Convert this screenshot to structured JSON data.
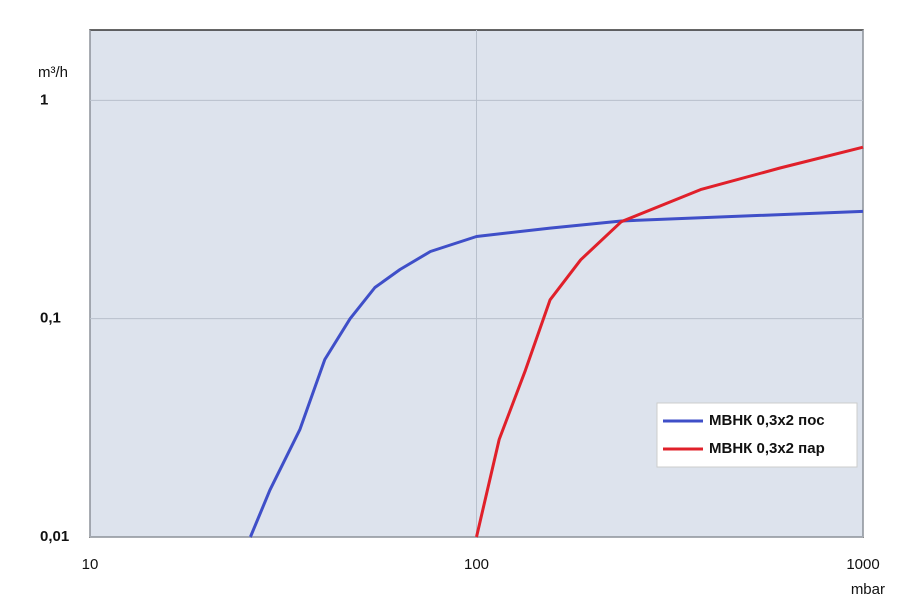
{
  "chart_data": {
    "type": "line",
    "y_label": "m³/h",
    "x_label": "mbar",
    "x_log": true,
    "y_log": true,
    "grid": true,
    "legend": "lower right",
    "xlim": [
      10,
      1000
    ],
    "xticks": [
      10,
      100,
      1000
    ],
    "ylim": [
      0.01,
      2.1
    ],
    "yticks": [
      {
        "value": 0.01,
        "label": "0,01"
      },
      {
        "value": 0.1,
        "label": "0,1"
      },
      {
        "value": 1,
        "label": "1"
      }
    ],
    "series": [
      {
        "name": "МВНК 0,3х2 пос",
        "color": "#3f4fc8",
        "x": [
          26,
          29.2,
          34.9,
          40.5,
          47.1,
          54.6,
          63.4,
          76,
          100,
          155,
          237,
          380,
          1000
        ],
        "values": [
          0.01,
          0.0164,
          0.031,
          0.065,
          0.1,
          0.139,
          0.168,
          0.203,
          0.238,
          0.26,
          0.28,
          0.29,
          0.31
        ]
      },
      {
        "name": "МВНК 0,3х2 пар",
        "color": "#e0202a",
        "x": [
          100,
          114.5,
          133.8,
          155,
          186,
          237,
          380,
          610,
          1000
        ],
        "values": [
          0.01,
          0.028,
          0.058,
          0.122,
          0.186,
          0.278,
          0.39,
          0.49,
          0.61
        ]
      }
    ]
  }
}
